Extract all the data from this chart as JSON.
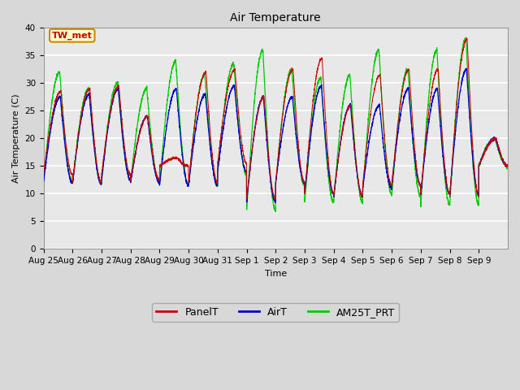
{
  "title": "Air Temperature",
  "xlabel": "Time",
  "ylabel": "Air Temperature (C)",
  "ylim": [
    0,
    40
  ],
  "yticks": [
    0,
    5,
    10,
    15,
    20,
    25,
    30,
    35,
    40
  ],
  "outer_bg": "#d8d8d8",
  "plot_bg_color": "#e8e8e8",
  "grid_color": "#ffffff",
  "color_red": "#cc0000",
  "color_blue": "#0000cc",
  "color_green": "#00cc00",
  "legend_entries": [
    "PanelT",
    "AirT",
    "AM25T_PRT"
  ],
  "annotation_text": "TW_met",
  "annotation_bg": "#ffffcc",
  "annotation_fg": "#cc0000",
  "annotation_border": "#cc8800",
  "n_days": 16,
  "figsize": [
    6.4,
    4.8
  ],
  "dpi": 100,
  "x_tick_labels": [
    "Aug 25",
    "Aug 26",
    "Aug 27",
    "Aug 28",
    "Aug 29",
    "Aug 30",
    "Aug 31",
    "Sep 1",
    "Sep 2",
    "Sep 3",
    "Sep 4",
    "Sep 5",
    "Sep 6",
    "Sep 7",
    "Sep 8",
    "Sep 9"
  ],
  "daily_mins_air": [
    12.0,
    11.8,
    12.5,
    12.0,
    11.5,
    11.5,
    14.0,
    8.5,
    12.0,
    10.0,
    9.5,
    11.0,
    11.5,
    10.0,
    9.8,
    15.0
  ],
  "daily_maxs_air": [
    27.5,
    28.0,
    29.0,
    24.0,
    29.0,
    28.0,
    29.5,
    27.5,
    27.5,
    29.5,
    26.0,
    26.0,
    29.0,
    29.0,
    32.5,
    20.0
  ],
  "daily_mins_panel": [
    13.5,
    12.0,
    13.5,
    12.5,
    15.0,
    12.0,
    15.5,
    9.0,
    12.0,
    10.0,
    9.5,
    11.5,
    11.5,
    10.0,
    9.5,
    15.0
  ],
  "daily_maxs_panel": [
    28.5,
    29.0,
    29.5,
    24.0,
    16.5,
    32.0,
    32.5,
    27.5,
    32.5,
    34.5,
    26.0,
    31.5,
    32.5,
    32.5,
    38.0,
    20.0
  ],
  "daily_mins_am25": [
    12.0,
    11.8,
    12.5,
    12.0,
    11.5,
    11.5,
    13.5,
    7.0,
    11.5,
    8.5,
    8.5,
    10.0,
    9.5,
    8.0,
    8.0,
    15.0
  ],
  "daily_maxs_am25": [
    32.0,
    29.0,
    30.0,
    29.0,
    34.0,
    31.5,
    33.5,
    36.0,
    32.5,
    31.0,
    31.5,
    36.0,
    32.5,
    36.0,
    38.0,
    20.0
  ]
}
